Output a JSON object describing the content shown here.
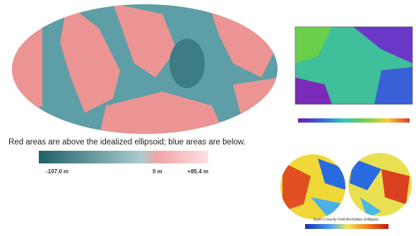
{
  "caption": "Red areas are above the idealized ellipsoid; blue areas are below.",
  "legend": {
    "min_label": "-107.0 m",
    "mid_label": "0 m",
    "max_label": "+85.4 m"
  },
  "gravity_caption": "Earth's Gravity Field Anomalies (milligals)"
}
